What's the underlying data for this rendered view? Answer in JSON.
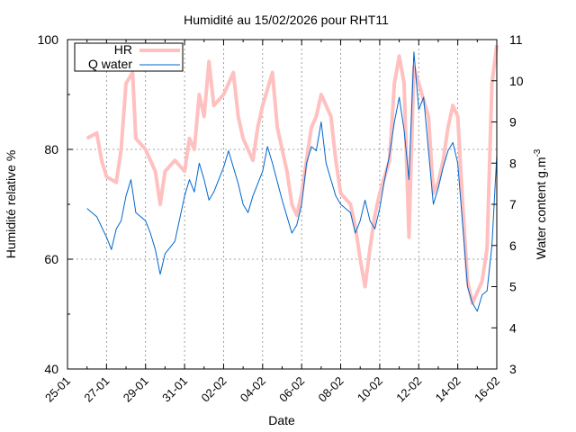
{
  "chart_data": {
    "type": "line",
    "title": "Humidité au 15/02/2026 pour RHT11",
    "xlabel": "Date",
    "ylabel_left": "Humidité relative %",
    "ylabel_right": "Water content g.m-3",
    "ylabel_right_base": "Water content g.m",
    "ylabel_right_sup": "-3",
    "x_range": [
      "2026-01-25",
      "2026-02-16"
    ],
    "x_ticks": [
      "25-01",
      "27-01",
      "29-01",
      "31-01",
      "02-02",
      "04-02",
      "06-02",
      "08-02",
      "10-02",
      "12-02",
      "14-02",
      "16-02"
    ],
    "y_left_range": [
      40,
      100
    ],
    "y_left_ticks": [
      "40",
      "60",
      "80",
      "100"
    ],
    "y_right_range": [
      3,
      11
    ],
    "y_right_ticks": [
      "3",
      "4",
      "5",
      "6",
      "7",
      "8",
      "9",
      "10",
      "11"
    ],
    "grid": true,
    "legend_position": "top-left",
    "series": [
      {
        "name": "HR",
        "axis": "left",
        "color": "#ffc0c0",
        "points": [
          [
            "2026-01-26T00:00",
            82
          ],
          [
            "2026-01-26T12:00",
            83
          ],
          [
            "2026-01-26T18:00",
            78
          ],
          [
            "2026-01-27T00:00",
            75
          ],
          [
            "2026-01-27T12:00",
            74
          ],
          [
            "2026-01-27T18:00",
            80
          ],
          [
            "2026-01-28T00:00",
            92
          ],
          [
            "2026-01-28T08:00",
            94
          ],
          [
            "2026-01-28T12:00",
            82
          ],
          [
            "2026-01-29T00:00",
            80
          ],
          [
            "2026-01-29T12:00",
            76
          ],
          [
            "2026-01-29T18:00",
            70
          ],
          [
            "2026-01-30T00:00",
            76
          ],
          [
            "2026-01-30T12:00",
            78
          ],
          [
            "2026-01-31T00:00",
            76
          ],
          [
            "2026-01-31T06:00",
            82
          ],
          [
            "2026-01-31T12:00",
            80
          ],
          [
            "2026-01-31T18:00",
            90
          ],
          [
            "2026-02-01T00:00",
            86
          ],
          [
            "2026-02-01T06:00",
            96
          ],
          [
            "2026-02-01T12:00",
            88
          ],
          [
            "2026-02-02T00:00",
            90
          ],
          [
            "2026-02-02T12:00",
            94
          ],
          [
            "2026-02-02T18:00",
            86
          ],
          [
            "2026-02-03T00:00",
            82
          ],
          [
            "2026-02-03T12:00",
            78
          ],
          [
            "2026-02-03T18:00",
            84
          ],
          [
            "2026-02-04T00:00",
            88
          ],
          [
            "2026-02-04T12:00",
            94
          ],
          [
            "2026-02-04T18:00",
            84
          ],
          [
            "2026-02-05T00:00",
            80
          ],
          [
            "2026-02-05T06:00",
            76
          ],
          [
            "2026-02-05T12:00",
            70
          ],
          [
            "2026-02-05T18:00",
            68
          ],
          [
            "2026-02-06T00:00",
            72
          ],
          [
            "2026-02-06T06:00",
            78
          ],
          [
            "2026-02-06T12:00",
            84
          ],
          [
            "2026-02-06T18:00",
            86
          ],
          [
            "2026-02-07T00:00",
            90
          ],
          [
            "2026-02-07T12:00",
            86
          ],
          [
            "2026-02-07T18:00",
            78
          ],
          [
            "2026-02-08T00:00",
            72
          ],
          [
            "2026-02-08T12:00",
            70
          ],
          [
            "2026-02-08T18:00",
            66
          ],
          [
            "2026-02-09T00:00",
            60
          ],
          [
            "2026-02-09T06:00",
            55
          ],
          [
            "2026-02-09T12:00",
            62
          ],
          [
            "2026-02-09T18:00",
            68
          ],
          [
            "2026-02-10T00:00",
            72
          ],
          [
            "2026-02-10T12:00",
            78
          ],
          [
            "2026-02-10T18:00",
            92
          ],
          [
            "2026-02-11T00:00",
            97
          ],
          [
            "2026-02-11T06:00",
            92
          ],
          [
            "2026-02-11T12:00",
            64
          ],
          [
            "2026-02-11T18:00",
            95
          ],
          [
            "2026-02-12T00:00",
            92
          ],
          [
            "2026-02-12T12:00",
            86
          ],
          [
            "2026-02-12T18:00",
            72
          ],
          [
            "2026-02-13T00:00",
            74
          ],
          [
            "2026-02-13T06:00",
            78
          ],
          [
            "2026-02-13T12:00",
            84
          ],
          [
            "2026-02-13T18:00",
            88
          ],
          [
            "2026-02-14T00:00",
            86
          ],
          [
            "2026-02-14T06:00",
            70
          ],
          [
            "2026-02-14T12:00",
            56
          ],
          [
            "2026-02-14T18:00",
            52
          ],
          [
            "2026-02-15T00:00",
            54
          ],
          [
            "2026-02-15T06:00",
            56
          ],
          [
            "2026-02-15T12:00",
            62
          ],
          [
            "2026-02-15T18:00",
            92
          ],
          [
            "2026-02-16T00:00",
            99
          ]
        ]
      },
      {
        "name": "Q water",
        "axis": "right",
        "color": "#0066cc",
        "points": [
          [
            "2026-01-26T00:00",
            6.9
          ],
          [
            "2026-01-26T12:00",
            6.7
          ],
          [
            "2026-01-27T00:00",
            6.2
          ],
          [
            "2026-01-27T06:00",
            5.9
          ],
          [
            "2026-01-27T12:00",
            6.4
          ],
          [
            "2026-01-27T18:00",
            6.6
          ],
          [
            "2026-01-28T00:00",
            7.2
          ],
          [
            "2026-01-28T06:00",
            7.6
          ],
          [
            "2026-01-28T12:00",
            6.8
          ],
          [
            "2026-01-29T00:00",
            6.6
          ],
          [
            "2026-01-29T06:00",
            6.3
          ],
          [
            "2026-01-29T12:00",
            5.9
          ],
          [
            "2026-01-29T18:00",
            5.3
          ],
          [
            "2026-01-30T00:00",
            5.8
          ],
          [
            "2026-01-30T12:00",
            6.1
          ],
          [
            "2026-01-31T00:00",
            7.2
          ],
          [
            "2026-01-31T06:00",
            7.6
          ],
          [
            "2026-01-31T12:00",
            7.3
          ],
          [
            "2026-01-31T18:00",
            8.0
          ],
          [
            "2026-02-01T00:00",
            7.6
          ],
          [
            "2026-02-01T06:00",
            7.1
          ],
          [
            "2026-02-01T12:00",
            7.3
          ],
          [
            "2026-02-02T00:00",
            7.9
          ],
          [
            "2026-02-02T06:00",
            8.3
          ],
          [
            "2026-02-02T18:00",
            7.5
          ],
          [
            "2026-02-03T00:00",
            7.0
          ],
          [
            "2026-02-03T06:00",
            6.8
          ],
          [
            "2026-02-03T12:00",
            7.2
          ],
          [
            "2026-02-04T00:00",
            7.8
          ],
          [
            "2026-02-04T06:00",
            8.4
          ],
          [
            "2026-02-04T12:00",
            8.0
          ],
          [
            "2026-02-05T00:00",
            7.1
          ],
          [
            "2026-02-05T06:00",
            6.7
          ],
          [
            "2026-02-05T12:00",
            6.3
          ],
          [
            "2026-02-05T18:00",
            6.5
          ],
          [
            "2026-02-06T00:00",
            7.0
          ],
          [
            "2026-02-06T06:00",
            8.0
          ],
          [
            "2026-02-06T12:00",
            8.4
          ],
          [
            "2026-02-06T18:00",
            8.3
          ],
          [
            "2026-02-07T00:00",
            9.0
          ],
          [
            "2026-02-07T06:00",
            8.0
          ],
          [
            "2026-02-07T12:00",
            7.6
          ],
          [
            "2026-02-07T18:00",
            7.2
          ],
          [
            "2026-02-08T00:00",
            7.0
          ],
          [
            "2026-02-08T12:00",
            6.8
          ],
          [
            "2026-02-08T18:00",
            6.3
          ],
          [
            "2026-02-09T00:00",
            6.6
          ],
          [
            "2026-02-09T06:00",
            7.1
          ],
          [
            "2026-02-09T12:00",
            6.6
          ],
          [
            "2026-02-09T18:00",
            6.4
          ],
          [
            "2026-02-10T00:00",
            6.9
          ],
          [
            "2026-02-10T06:00",
            7.6
          ],
          [
            "2026-02-10T12:00",
            8.2
          ],
          [
            "2026-02-10T18:00",
            9.0
          ],
          [
            "2026-02-11T00:00",
            9.6
          ],
          [
            "2026-02-11T06:00",
            8.8
          ],
          [
            "2026-02-11T12:00",
            7.6
          ],
          [
            "2026-02-11T18:00",
            10.7
          ],
          [
            "2026-02-12T00:00",
            9.3
          ],
          [
            "2026-02-12T06:00",
            9.6
          ],
          [
            "2026-02-12T12:00",
            8.3
          ],
          [
            "2026-02-12T18:00",
            7.0
          ],
          [
            "2026-02-13T00:00",
            7.4
          ],
          [
            "2026-02-13T06:00",
            7.9
          ],
          [
            "2026-02-13T12:00",
            8.3
          ],
          [
            "2026-02-13T18:00",
            8.5
          ],
          [
            "2026-02-14T00:00",
            8.0
          ],
          [
            "2026-02-14T06:00",
            6.5
          ],
          [
            "2026-02-14T12:00",
            5.0
          ],
          [
            "2026-02-14T18:00",
            4.6
          ],
          [
            "2026-02-15T00:00",
            4.4
          ],
          [
            "2026-02-15T06:00",
            4.8
          ],
          [
            "2026-02-15T12:00",
            4.9
          ],
          [
            "2026-02-15T18:00",
            6.0
          ],
          [
            "2026-02-16T00:00",
            8.2
          ]
        ]
      }
    ]
  }
}
